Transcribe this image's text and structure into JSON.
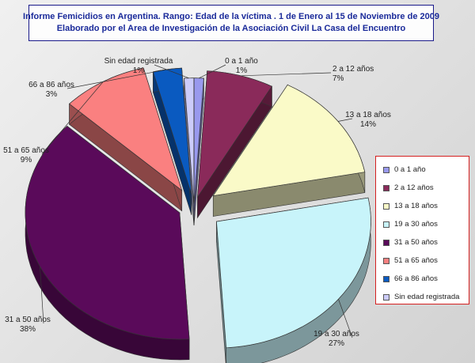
{
  "header": {
    "title_line1": "Informe Femicidios en Argentina. Rango: Edad de la víctima . 1 de Enero  al 15 de Noviembre de 2009",
    "title_line2": "Elaborado por el Area de Investigación de la Asociación Civil La Casa del Encuentro"
  },
  "chart_data": {
    "type": "pie",
    "title": "Informe Femicidios en Argentina. Rango: Edad de la víctima . 1 de Enero  al 15 de Noviembre de 2009",
    "subtitle": "Elaborado por el Area de Investigación de la Asociación Civil La Casa del Encuentro",
    "style": "3d-exploded",
    "legend_position": "right",
    "categories": [
      "0 a 1 año",
      "2 a 12 años",
      "13 a 18 años",
      "19 a 30 años",
      "31 a 50 años",
      "51 a 65 años",
      "66 a 86 años",
      "Sin edad registrada"
    ],
    "values": [
      1,
      7,
      14,
      27,
      38,
      9,
      3,
      1
    ],
    "value_labels": [
      "1%",
      "7%",
      "14%",
      "27%",
      "38%",
      "9%",
      "3%",
      "1%"
    ],
    "colors": [
      "#9999ee",
      "#8a2a5a",
      "#fafac8",
      "#c8f4fa",
      "#5a0a5a",
      "#fa8080",
      "#0a5ac0",
      "#ccccfa"
    ]
  }
}
